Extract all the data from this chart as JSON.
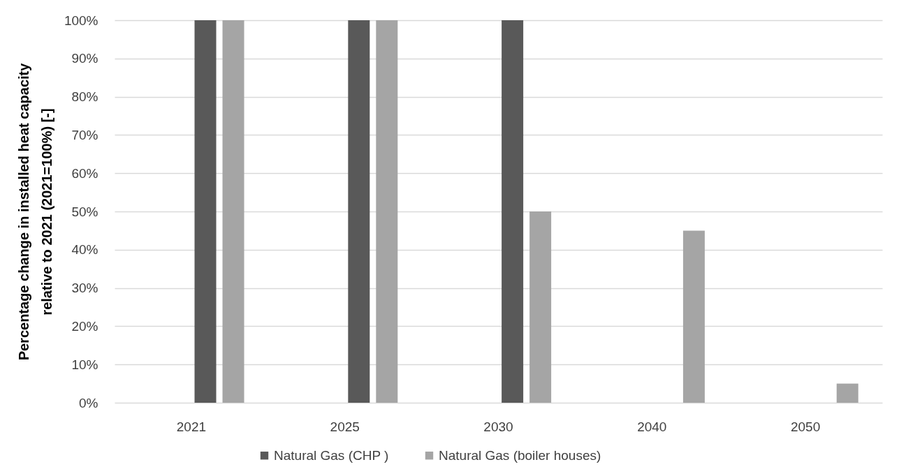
{
  "chart_data": {
    "type": "bar",
    "ylabel": "Percentage change in installed heat capacity\nrelative to 2021 (2021=100%) [-]",
    "categories": [
      "2021",
      "2025",
      "2030",
      "2040",
      "2050"
    ],
    "series": [
      {
        "name": "Natural Gas (CHP )",
        "color": "#595959",
        "values": [
          100,
          100,
          100,
          null,
          null
        ]
      },
      {
        "name": "Natural Gas (boiler houses)",
        "color": "#a5a5a5",
        "values": [
          100,
          100,
          50,
          45,
          5
        ]
      }
    ],
    "ylim": [
      0,
      100
    ],
    "yticks": [
      {
        "value": 0,
        "label": "0%"
      },
      {
        "value": 10,
        "label": "10%"
      },
      {
        "value": 20,
        "label": "20%"
      },
      {
        "value": 30,
        "label": "30%"
      },
      {
        "value": 40,
        "label": "40%"
      },
      {
        "value": 50,
        "label": "50%"
      },
      {
        "value": 60,
        "label": "60%"
      },
      {
        "value": 70,
        "label": "70%"
      },
      {
        "value": 80,
        "label": "80%"
      },
      {
        "value": 90,
        "label": "90%"
      },
      {
        "value": 100,
        "label": "100%"
      }
    ],
    "grid": "y",
    "legend": "bottom"
  }
}
